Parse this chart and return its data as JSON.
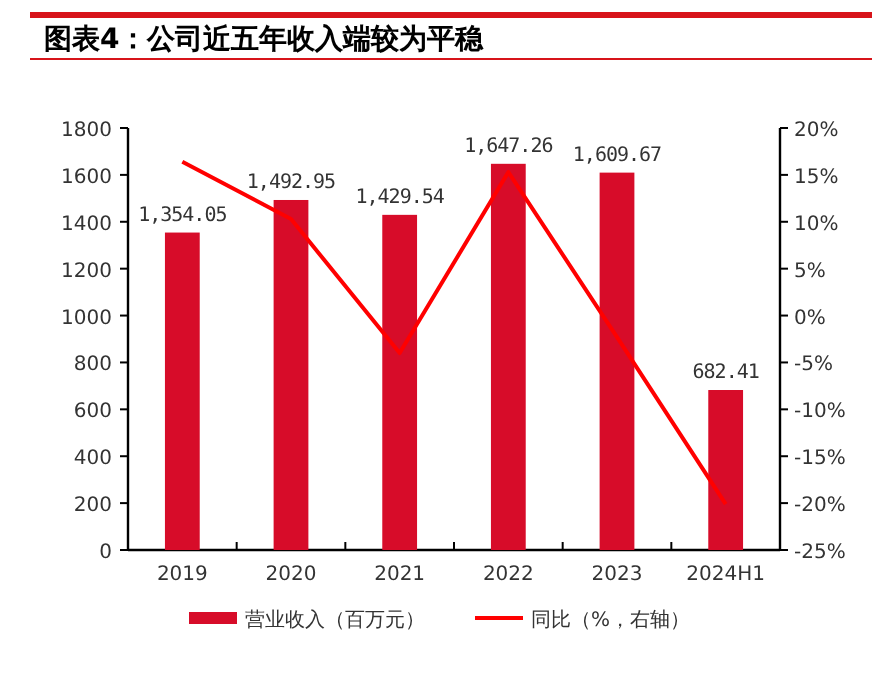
{
  "chart_data": {
    "type": "bar",
    "title": "图表4：公司近五年收入端较为平稳",
    "categories": [
      "2019",
      "2020",
      "2021",
      "2022",
      "2023",
      "2024H1"
    ],
    "series": [
      {
        "name": "营业收入（百万元）",
        "type": "bar",
        "color": "#d70c29",
        "values": [
          1354.05,
          1492.95,
          1429.54,
          1647.26,
          1609.67,
          682.41
        ],
        "value_labels": [
          "1,354.05",
          "1,492.95",
          "1,429.54",
          "1,647.26",
          "1,609.67",
          "682.41"
        ]
      },
      {
        "name": "同比（%，右轴）",
        "type": "line",
        "axis": "y2",
        "color": "#ff0000",
        "values": [
          16.4,
          10.3,
          -4.0,
          15.3,
          -2.3,
          -20.1
        ]
      }
    ],
    "ylim": [
      0,
      1800
    ],
    "yticks": [
      0,
      200,
      400,
      600,
      800,
      1000,
      1200,
      1400,
      1600,
      1800
    ],
    "y2lim": [
      -25,
      20
    ],
    "y2ticks": [
      {
        "value": -25,
        "label": "-25%"
      },
      {
        "value": -20,
        "label": "-20%"
      },
      {
        "value": -15,
        "label": "-15%"
      },
      {
        "value": -10,
        "label": "-10%"
      },
      {
        "value": -5,
        "label": "-5%"
      },
      {
        "value": 0,
        "label": "0%"
      },
      {
        "value": 5,
        "label": "5%"
      },
      {
        "value": 10,
        "label": "10%"
      },
      {
        "value": 15,
        "label": "15%"
      },
      {
        "value": 20,
        "label": "20%"
      }
    ],
    "legend": "bottom",
    "grid": false
  }
}
